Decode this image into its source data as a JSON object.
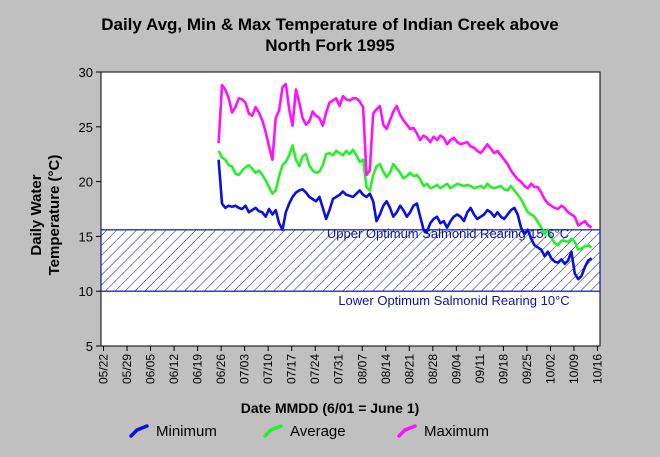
{
  "title_line1": "Daily Avg, Min & Max Temperature of Indian Creek above",
  "title_line2": "North Fork 1995",
  "chart_data": {
    "type": "line",
    "title": "Daily Avg, Min & Max Temperature of Indian Creek above North Fork 1995",
    "ylabel_line1": "Daily Water",
    "ylabel_line2": "Temperature (°C)",
    "xlabel": "Date MMDD (6/01 = June 1)",
    "ylim": [
      5,
      30
    ],
    "yticks": [
      "5",
      "10",
      "15",
      "20",
      "25",
      "30"
    ],
    "xticks": [
      "05/22",
      "05/29",
      "06/05",
      "06/12",
      "06/19",
      "06/26",
      "07/03",
      "07/10",
      "07/17",
      "07/24",
      "07/31",
      "08/07",
      "08/14",
      "08/21",
      "08/28",
      "09/04",
      "09/11",
      "09/18",
      "09/25",
      "10/02",
      "10/09",
      "10/16"
    ],
    "x_start_day_label": "05/22",
    "band": {
      "upper": 15.6,
      "lower": 10,
      "upper_label": "Upper Optimum Salmonid Rearing 15.6°C",
      "lower_label": "Lower Optimum Salmonid Rearing 10°C",
      "color": "#0a14a0"
    },
    "series": [
      {
        "name": "Minimum",
        "color": "#0a10e0",
        "x_start": 35,
        "values": [
          22.0,
          18.0,
          17.6,
          17.8,
          17.7,
          17.8,
          17.6,
          17.5,
          17.8,
          17.2,
          17.4,
          17.6,
          17.3,
          17.2,
          16.8,
          17.5,
          17.0,
          17.4,
          16.2,
          15.6,
          17.2,
          18.0,
          18.6,
          19.0,
          19.2,
          19.3,
          19.0,
          18.6,
          18.4,
          18.2,
          18.6,
          17.6,
          16.6,
          17.4,
          18.4,
          18.6,
          18.8,
          19.1,
          18.8,
          18.7,
          18.6,
          18.9,
          19.2,
          18.8,
          18.6,
          18.9,
          18.2,
          16.4,
          17.0,
          17.8,
          18.2,
          17.6,
          16.8,
          17.2,
          17.8,
          17.4,
          16.8,
          17.2,
          17.8,
          18.0,
          16.8,
          15.6,
          15.4,
          16.2,
          16.6,
          16.8,
          16.2,
          16.4,
          15.8,
          16.4,
          16.8,
          17.0,
          16.8,
          16.4,
          17.2,
          17.6,
          17.0,
          16.6,
          16.8,
          17.0,
          17.4,
          17.2,
          16.8,
          17.2,
          16.8,
          16.6,
          17.0,
          17.4,
          17.6,
          17.0,
          15.8,
          15.2,
          15.6,
          14.8,
          14.2,
          14.0,
          13.8,
          13.2,
          13.6,
          13.0,
          12.7,
          12.6,
          12.9,
          12.5,
          12.8,
          13.6,
          11.6,
          11.1,
          11.4,
          12.2,
          12.8,
          13.0
        ]
      },
      {
        "name": "Average",
        "color": "#28f028",
        "x_start": 35,
        "values": [
          22.8,
          22.2,
          22.0,
          21.5,
          21.4,
          20.7,
          20.6,
          21.0,
          21.3,
          21.5,
          21.2,
          20.8,
          21.0,
          20.6,
          20.1,
          19.5,
          18.9,
          19.2,
          20.5,
          21.5,
          21.8,
          22.4,
          23.3,
          22.0,
          21.4,
          22.3,
          22.5,
          21.5,
          21.0,
          20.8,
          20.9,
          21.5,
          22.5,
          22.6,
          22.4,
          22.8,
          22.6,
          22.4,
          22.8,
          22.5,
          22.9,
          22.4,
          21.8,
          22.0,
          19.5,
          19.2,
          20.6,
          21.4,
          21.6,
          20.9,
          20.4,
          20.8,
          21.6,
          21.2,
          20.8,
          20.3,
          20.5,
          20.8,
          20.5,
          20.6,
          20.2,
          19.6,
          19.8,
          19.4,
          19.5,
          19.7,
          19.4,
          19.6,
          19.8,
          19.4,
          19.6,
          19.8,
          19.7,
          19.6,
          19.7,
          19.6,
          19.4,
          19.5,
          19.6,
          19.4,
          19.8,
          19.5,
          19.4,
          19.5,
          19.6,
          19.3,
          19.2,
          19.6,
          19.2,
          18.8,
          18.4,
          17.8,
          17.2,
          17.0,
          16.8,
          16.3,
          15.8,
          15.2,
          15.6,
          14.9,
          14.4,
          14.2,
          14.6,
          14.6,
          14.5,
          14.8,
          14.5,
          13.8,
          13.9,
          14.1,
          14.2,
          14.0
        ]
      },
      {
        "name": "Maximum",
        "color": "#ff10ff",
        "x_start": 35,
        "values": [
          23.5,
          28.8,
          28.4,
          27.6,
          26.3,
          26.8,
          27.6,
          27.5,
          27.2,
          26.2,
          26.0,
          26.8,
          26.3,
          25.6,
          24.5,
          23.2,
          22.0,
          25.8,
          26.5,
          28.6,
          28.9,
          26.6,
          25.1,
          28.4,
          27.2,
          25.8,
          25.2,
          25.5,
          26.4,
          26.0,
          25.8,
          25.1,
          26.3,
          27.2,
          27.4,
          27.6,
          26.9,
          27.8,
          27.5,
          27.4,
          27.6,
          27.6,
          27.3,
          26.8,
          20.6,
          21.0,
          26.2,
          26.6,
          26.9,
          25.2,
          24.8,
          25.6,
          26.4,
          26.9,
          26.1,
          25.6,
          25.2,
          24.8,
          24.9,
          24.4,
          23.8,
          24.2,
          24.0,
          23.6,
          24.1,
          23.8,
          24.2,
          24.0,
          23.4,
          23.8,
          24.0,
          23.6,
          23.4,
          23.5,
          23.6,
          23.2,
          23.1,
          22.8,
          22.6,
          23.0,
          23.4,
          23.0,
          22.6,
          22.8,
          22.4,
          22.0,
          21.6,
          21.0,
          20.6,
          20.2,
          20.0,
          19.6,
          19.4,
          19.8,
          19.5,
          19.5,
          19.0,
          18.4,
          18.0,
          17.8,
          17.6,
          17.5,
          17.8,
          17.6,
          17.2,
          17.0,
          16.8,
          16.0,
          16.2,
          16.4,
          16.0,
          15.8
        ]
      }
    ]
  }
}
